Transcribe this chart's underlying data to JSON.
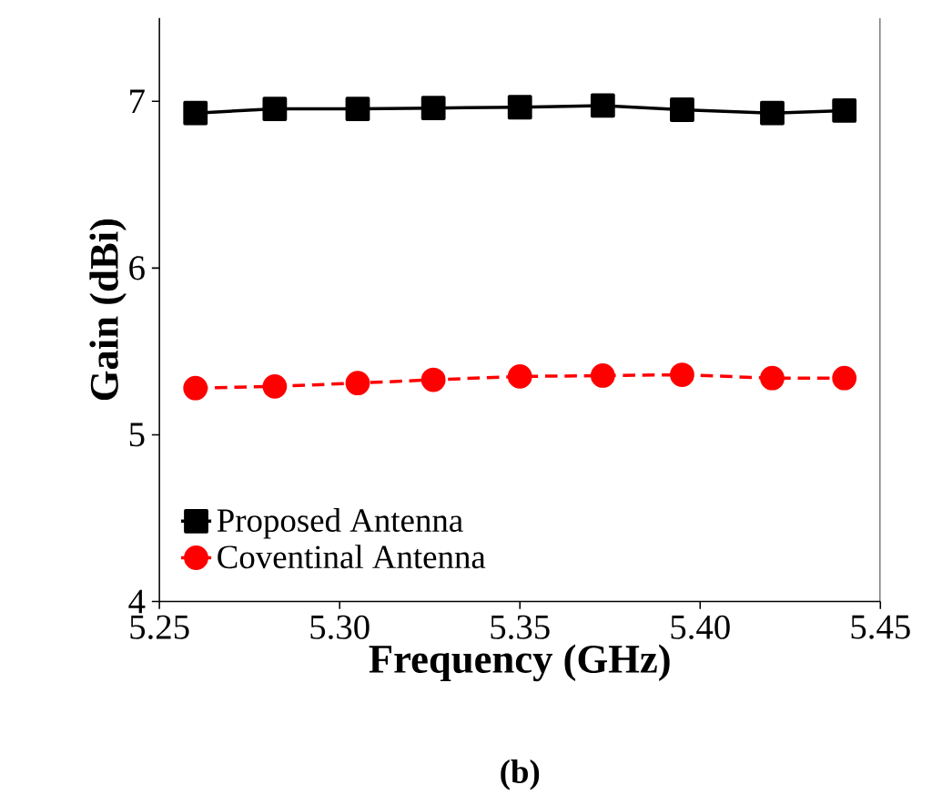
{
  "chart_data": {
    "type": "line",
    "xlabel": "**Frequency (GHz)**",
    "ylabel": "**Gain (dBi)**",
    "annotations": [
      "**(b)**"
    ],
    "x": [
      5.26,
      5.282,
      5.305,
      5.326,
      5.35,
      5.373,
      5.395,
      5.42,
      5.44
    ],
    "series": [
      {
        "name": "Proposed Antenna",
        "color": "#000000",
        "marker": "square",
        "line_style": "solid",
        "values": [
          6.93,
          6.955,
          6.955,
          6.96,
          6.965,
          6.975,
          6.95,
          6.93,
          6.945
        ]
      },
      {
        "name": "Coventinal Antenna",
        "color": "#ff0000",
        "marker": "circle",
        "line_style": "dashed",
        "values": [
          5.28,
          5.29,
          5.31,
          5.33,
          5.35,
          5.355,
          5.36,
          5.34,
          5.34
        ]
      }
    ],
    "xlim": [
      5.25,
      5.45
    ],
    "ylim": [
      4,
      7.5
    ],
    "xticks": [
      {
        "value": 5.25,
        "label": "5.25"
      },
      {
        "value": 5.3,
        "label": "5.30"
      },
      {
        "value": 5.35,
        "label": "5.35"
      },
      {
        "value": 5.4,
        "label": "5.40"
      },
      {
        "value": 5.45,
        "label": "5.45"
      }
    ],
    "yticks": [
      4,
      5,
      6,
      7
    ],
    "grid": false,
    "legend": "bottom left"
  }
}
